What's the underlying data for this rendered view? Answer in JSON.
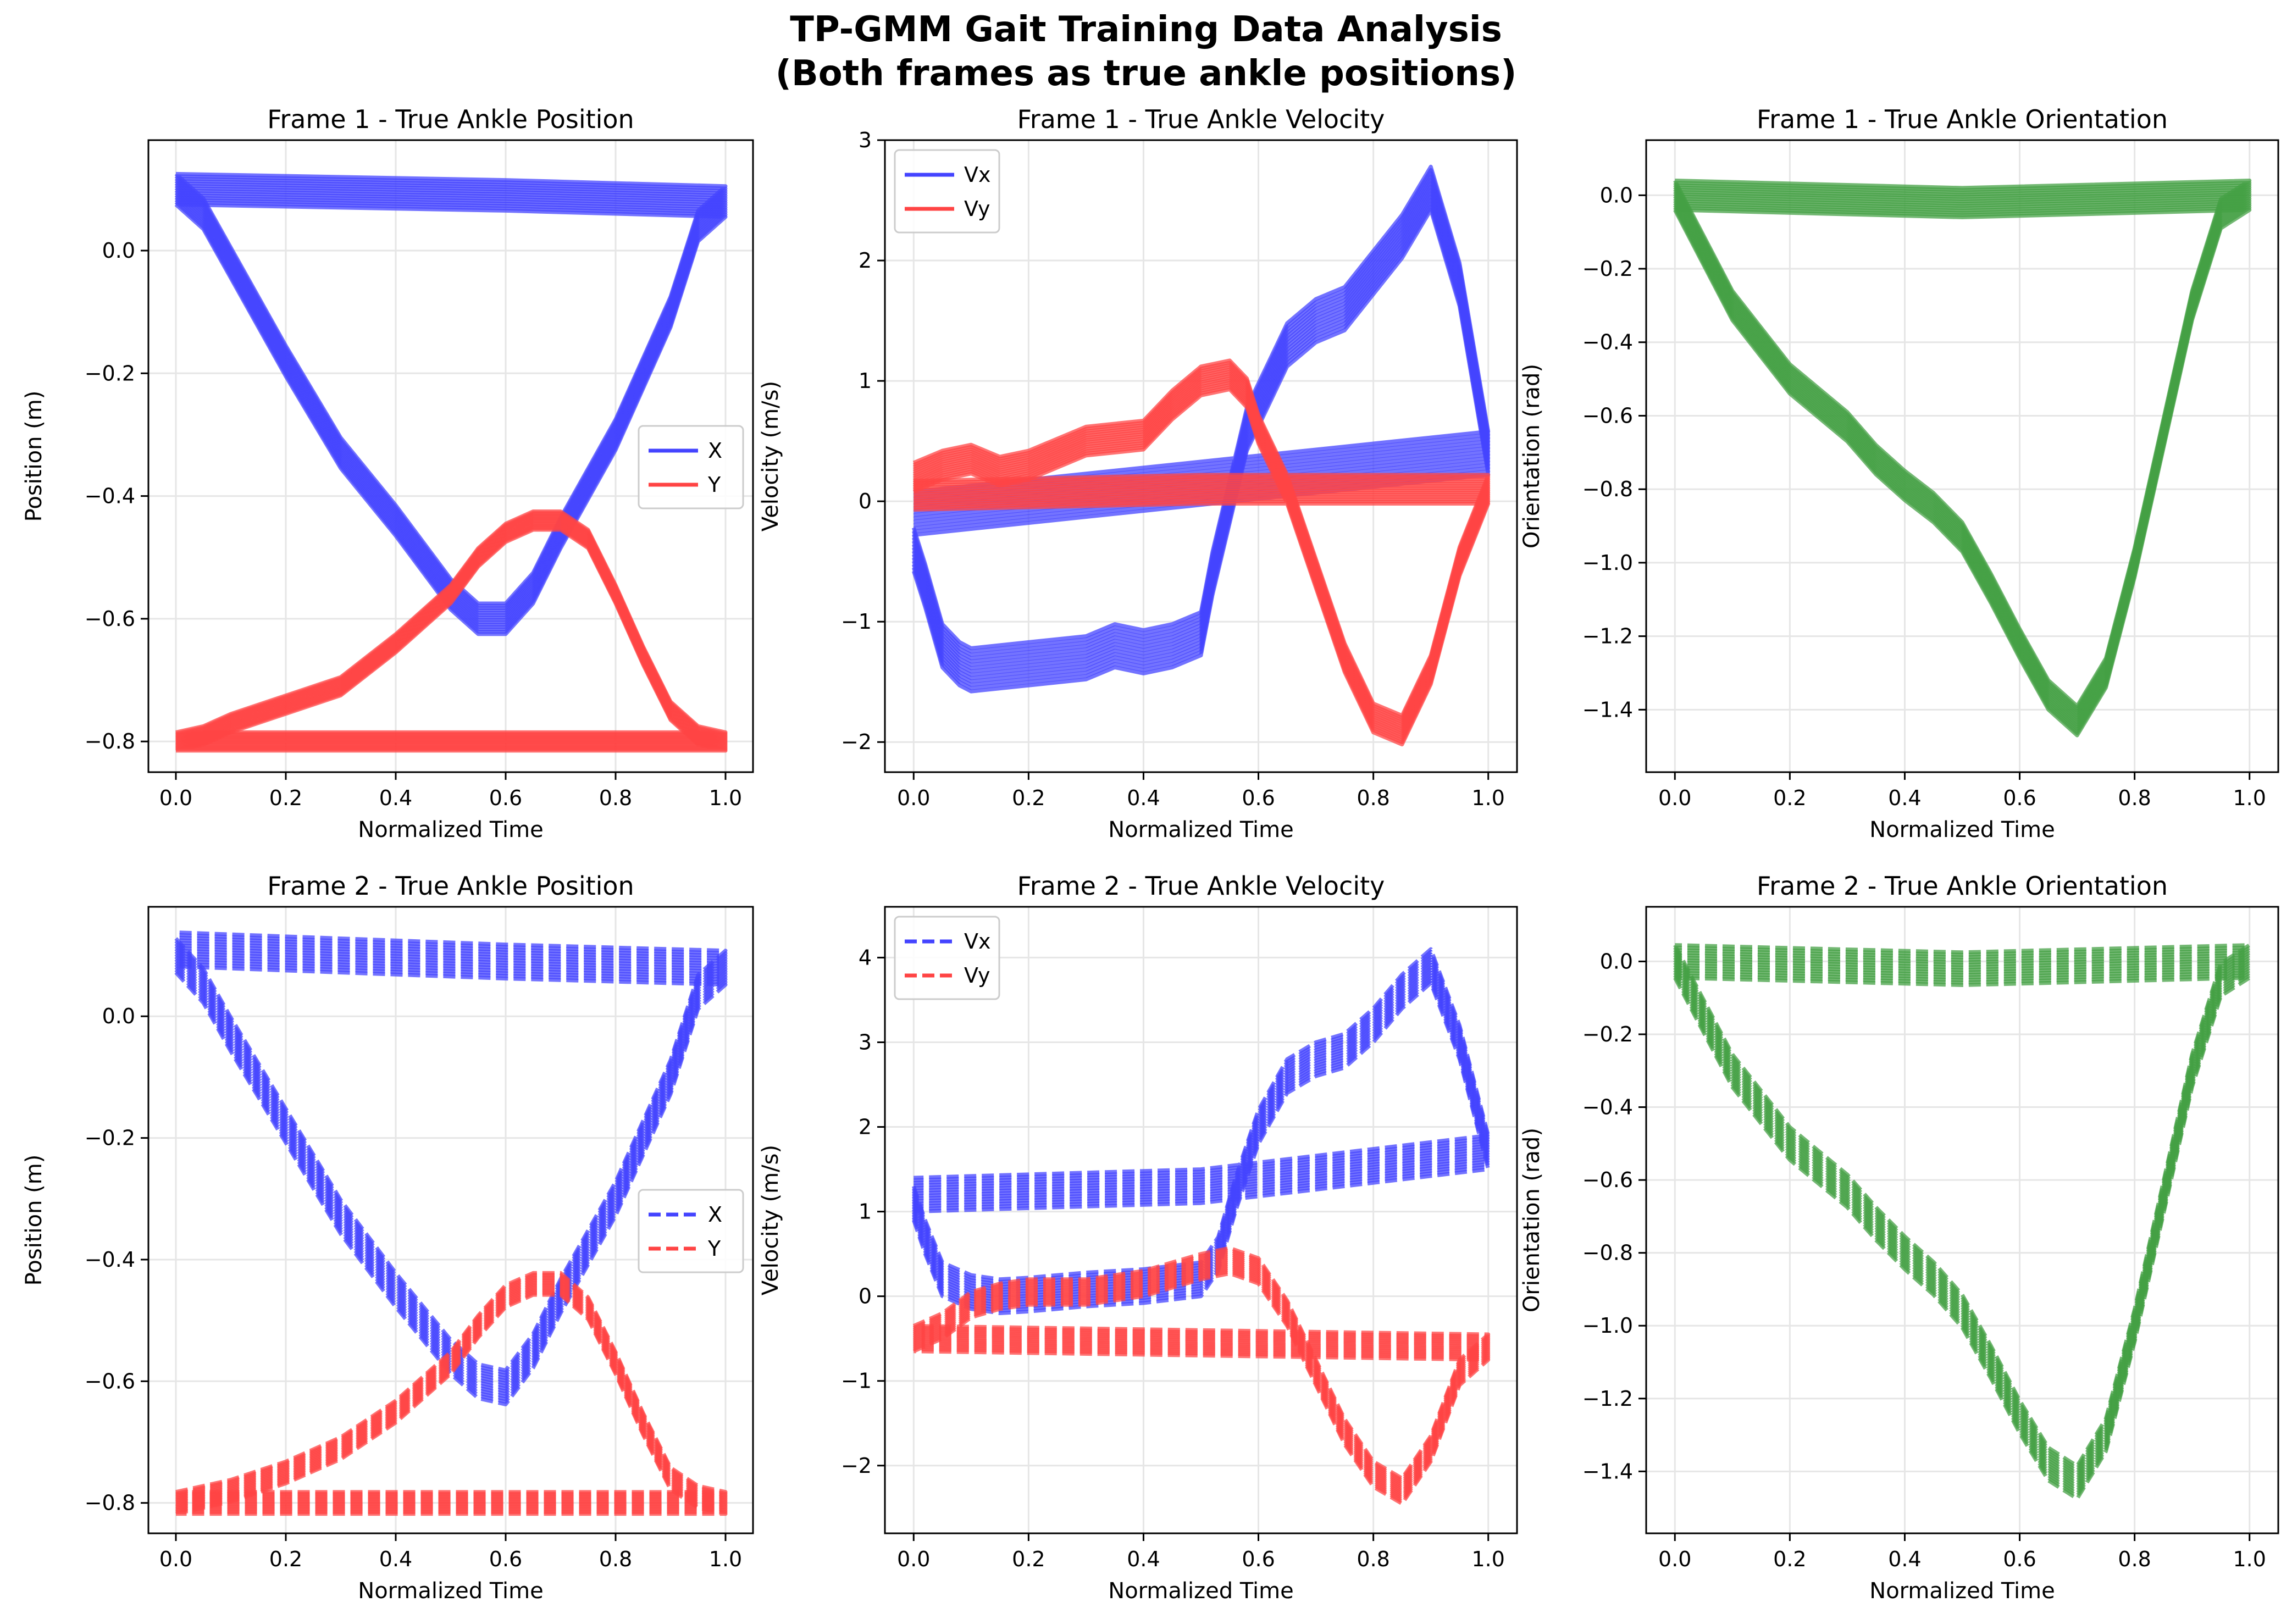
{
  "figure": {
    "title_line1": "TP-GMM Gait Training Data Analysis",
    "title_line2": "(Both frames as true ankle positions)"
  },
  "colors": {
    "x": "#4444ff",
    "y": "#ff4444",
    "orientation": "#44a044",
    "grid": "#e6e6e6",
    "axis": "#000000"
  },
  "chart_data": [
    {
      "type": "line",
      "title": "Frame 1 - True Ankle Position",
      "xlabel": "Normalized Time",
      "ylabel": "Position (m)",
      "xlim": [
        -0.05,
        1.05
      ],
      "ylim": [
        -0.85,
        0.18
      ],
      "xticks": [
        0.0,
        0.2,
        0.4,
        0.6,
        0.8,
        1.0
      ],
      "xtick_labels": [
        "0.0",
        "0.2",
        "0.4",
        "0.6",
        "0.8",
        "1.0"
      ],
      "yticks": [
        0.0,
        -0.2,
        -0.4,
        -0.6,
        -0.8
      ],
      "ytick_labels": [
        "0.0",
        "−0.2",
        "−0.4",
        "−0.6",
        "−0.8"
      ],
      "legend": {
        "position": "center-right",
        "entries": [
          "X",
          "Y"
        ]
      },
      "dashed": false,
      "series": [
        {
          "name": "X",
          "color_key": "x",
          "x": [
            0,
            0.05,
            0.1,
            0.2,
            0.3,
            0.4,
            0.5,
            0.55,
            0.6,
            0.65,
            0.7,
            0.8,
            0.9,
            0.95,
            1.0,
            0.6,
            0.0
          ],
          "values": [
            0.1,
            0.06,
            -0.02,
            -0.18,
            -0.33,
            -0.44,
            -0.56,
            -0.6,
            -0.6,
            -0.55,
            -0.46,
            -0.3,
            -0.1,
            0.04,
            0.08,
            0.09,
            0.1
          ],
          "band": 0.025
        },
        {
          "name": "Y",
          "color_key": "y",
          "x": [
            0,
            0.05,
            0.1,
            0.2,
            0.3,
            0.4,
            0.5,
            0.55,
            0.6,
            0.65,
            0.7,
            0.75,
            0.8,
            0.85,
            0.9,
            0.95,
            1.0,
            0.5,
            0.0
          ],
          "values": [
            -0.8,
            -0.79,
            -0.77,
            -0.74,
            -0.71,
            -0.64,
            -0.56,
            -0.5,
            -0.46,
            -0.44,
            -0.44,
            -0.47,
            -0.56,
            -0.66,
            -0.75,
            -0.79,
            -0.8,
            -0.8,
            -0.8
          ],
          "band": 0.015
        }
      ]
    },
    {
      "type": "line",
      "title": "Frame 1 - True Ankle Velocity",
      "xlabel": "Normalized Time",
      "ylabel": "Velocity (m/s)",
      "xlim": [
        -0.05,
        1.05
      ],
      "ylim": [
        -2.25,
        3.0
      ],
      "xticks": [
        0.0,
        0.2,
        0.4,
        0.6,
        0.8,
        1.0
      ],
      "xtick_labels": [
        "0.0",
        "0.2",
        "0.4",
        "0.6",
        "0.8",
        "1.0"
      ],
      "yticks": [
        3,
        2,
        1,
        0,
        -1,
        -2
      ],
      "ytick_labels": [
        "3",
        "2",
        "1",
        "0",
        "−1",
        "−2"
      ],
      "legend": {
        "position": "upper-left",
        "entries": [
          "Vx",
          "Vy"
        ]
      },
      "dashed": false,
      "series": [
        {
          "name": "Vx",
          "color_key": "x",
          "x": [
            0,
            0.02,
            0.05,
            0.08,
            0.1,
            0.2,
            0.3,
            0.35,
            0.4,
            0.45,
            0.5,
            0.52,
            0.55,
            0.58,
            0.62,
            0.65,
            0.7,
            0.75,
            0.8,
            0.85,
            0.9,
            0.95,
            1.0,
            0.5,
            0.0
          ],
          "values": [
            -0.4,
            -0.7,
            -1.2,
            -1.35,
            -1.4,
            -1.35,
            -1.3,
            -1.2,
            -1.25,
            -1.2,
            -1.1,
            -0.6,
            0.0,
            0.6,
            1.0,
            1.3,
            1.5,
            1.6,
            1.9,
            2.2,
            2.6,
            1.8,
            0.4,
            0.15,
            -0.1
          ],
          "band": 0.18
        },
        {
          "name": "Vy",
          "color_key": "y",
          "x": [
            0,
            0.05,
            0.1,
            0.15,
            0.2,
            0.25,
            0.3,
            0.4,
            0.45,
            0.5,
            0.55,
            0.58,
            0.6,
            0.65,
            0.7,
            0.75,
            0.8,
            0.85,
            0.9,
            0.95,
            1.0,
            0.5,
            0.0
          ],
          "values": [
            0.2,
            0.3,
            0.35,
            0.25,
            0.3,
            0.4,
            0.5,
            0.55,
            0.8,
            1.0,
            1.05,
            0.9,
            0.6,
            0.1,
            -0.6,
            -1.3,
            -1.8,
            -1.9,
            -1.4,
            -0.5,
            0.1,
            0.1,
            0.05
          ],
          "band": 0.12
        }
      ]
    },
    {
      "type": "line",
      "title": "Frame 1 - True Ankle Orientation",
      "xlabel": "Normalized Time",
      "ylabel": "Orientation (rad)",
      "xlim": [
        -0.05,
        1.05
      ],
      "ylim": [
        -1.57,
        0.15
      ],
      "xticks": [
        0.0,
        0.2,
        0.4,
        0.6,
        0.8,
        1.0
      ],
      "xtick_labels": [
        "0.0",
        "0.2",
        "0.4",
        "0.6",
        "0.8",
        "1.0"
      ],
      "yticks": [
        0.0,
        -0.2,
        -0.4,
        -0.6,
        -0.8,
        -1.0,
        -1.2,
        -1.4
      ],
      "ytick_labels": [
        "0.0",
        "−0.2",
        "−0.4",
        "−0.6",
        "−0.8",
        "−1.0",
        "−1.2",
        "−1.4"
      ],
      "legend": null,
      "dashed": false,
      "series": [
        {
          "name": "Orientation",
          "color_key": "orientation",
          "x": [
            0,
            0.05,
            0.1,
            0.15,
            0.2,
            0.3,
            0.35,
            0.4,
            0.45,
            0.5,
            0.55,
            0.6,
            0.65,
            0.7,
            0.75,
            0.8,
            0.85,
            0.9,
            0.95,
            1.0,
            0.5,
            0.0
          ],
          "values": [
            0.0,
            -0.15,
            -0.3,
            -0.4,
            -0.5,
            -0.63,
            -0.72,
            -0.79,
            -0.85,
            -0.93,
            -1.07,
            -1.22,
            -1.36,
            -1.43,
            -1.3,
            -1.0,
            -0.65,
            -0.3,
            -0.05,
            0.0,
            -0.02,
            0.0
          ],
          "band": 0.04
        }
      ]
    },
    {
      "type": "line",
      "title": "Frame 2 - True Ankle Position",
      "xlabel": "Normalized Time",
      "ylabel": "Position (m)",
      "xlim": [
        -0.05,
        1.05
      ],
      "ylim": [
        -0.85,
        0.18
      ],
      "xticks": [
        0.0,
        0.2,
        0.4,
        0.6,
        0.8,
        1.0
      ],
      "xtick_labels": [
        "0.0",
        "0.2",
        "0.4",
        "0.6",
        "0.8",
        "1.0"
      ],
      "yticks": [
        0.0,
        -0.2,
        -0.4,
        -0.6,
        -0.8
      ],
      "ytick_labels": [
        "0.0",
        "−0.2",
        "−0.4",
        "−0.6",
        "−0.8"
      ],
      "legend": {
        "position": "center-right",
        "entries": [
          "X",
          "Y"
        ]
      },
      "dashed": true,
      "series": [
        {
          "name": "X",
          "color_key": "x",
          "x": [
            0,
            0.05,
            0.1,
            0.2,
            0.3,
            0.4,
            0.5,
            0.55,
            0.6,
            0.65,
            0.7,
            0.8,
            0.9,
            0.95,
            1.0,
            0.6,
            0.0
          ],
          "values": [
            0.1,
            0.05,
            -0.03,
            -0.18,
            -0.33,
            -0.45,
            -0.56,
            -0.6,
            -0.61,
            -0.55,
            -0.46,
            -0.3,
            -0.1,
            0.04,
            0.08,
            0.09,
            0.11
          ],
          "band": 0.028
        },
        {
          "name": "Y",
          "color_key": "y",
          "x": [
            0,
            0.05,
            0.1,
            0.2,
            0.3,
            0.4,
            0.5,
            0.55,
            0.6,
            0.65,
            0.7,
            0.75,
            0.8,
            0.85,
            0.9,
            0.95,
            1.0,
            0.5,
            0.0
          ],
          "values": [
            -0.8,
            -0.79,
            -0.78,
            -0.75,
            -0.71,
            -0.65,
            -0.57,
            -0.51,
            -0.46,
            -0.44,
            -0.44,
            -0.48,
            -0.57,
            -0.67,
            -0.76,
            -0.79,
            -0.8,
            -0.8,
            -0.8
          ],
          "band": 0.018
        }
      ]
    },
    {
      "type": "line",
      "title": "Frame 2 - True Ankle Velocity",
      "xlabel": "Normalized Time",
      "ylabel": "Velocity (m/s)",
      "xlim": [
        -0.05,
        1.05
      ],
      "ylim": [
        -2.8,
        4.6
      ],
      "xticks": [
        0.0,
        0.2,
        0.4,
        0.6,
        0.8,
        1.0
      ],
      "xtick_labels": [
        "0.0",
        "0.2",
        "0.4",
        "0.6",
        "0.8",
        "1.0"
      ],
      "yticks": [
        4,
        3,
        2,
        1,
        0,
        -1,
        -2
      ],
      "ytick_labels": [
        "4",
        "3",
        "2",
        "1",
        "0",
        "−1",
        "−2"
      ],
      "legend": {
        "position": "upper-left",
        "entries": [
          "Vx",
          "Vy"
        ]
      },
      "dashed": true,
      "series": [
        {
          "name": "Vx",
          "color_key": "x",
          "x": [
            0,
            0.02,
            0.05,
            0.1,
            0.15,
            0.2,
            0.3,
            0.4,
            0.5,
            0.53,
            0.56,
            0.6,
            0.65,
            0.7,
            0.75,
            0.8,
            0.85,
            0.9,
            0.95,
            1.0,
            0.5,
            0.0
          ],
          "values": [
            1.1,
            0.7,
            0.2,
            0.05,
            0.0,
            0.02,
            0.08,
            0.12,
            0.2,
            0.5,
            1.2,
            2.0,
            2.6,
            2.8,
            2.9,
            3.2,
            3.6,
            3.9,
            3.0,
            1.7,
            1.3,
            1.2
          ],
          "band": 0.2
        },
        {
          "name": "Vy",
          "color_key": "y",
          "x": [
            0,
            0.05,
            0.1,
            0.15,
            0.2,
            0.3,
            0.4,
            0.45,
            0.5,
            0.55,
            0.6,
            0.65,
            0.7,
            0.75,
            0.8,
            0.85,
            0.9,
            0.95,
            1.0,
            0.5,
            0.0
          ],
          "values": [
            -0.5,
            -0.35,
            -0.1,
            0.0,
            0.05,
            0.05,
            0.15,
            0.25,
            0.35,
            0.42,
            0.3,
            -0.2,
            -0.9,
            -1.6,
            -2.1,
            -2.3,
            -1.8,
            -0.9,
            -0.6,
            -0.55,
            -0.5
          ],
          "band": 0.15
        }
      ]
    },
    {
      "type": "line",
      "title": "Frame 2 - True Ankle Orientation",
      "xlabel": "Normalized Time",
      "ylabel": "Orientation (rad)",
      "xlim": [
        -0.05,
        1.05
      ],
      "ylim": [
        -1.57,
        0.15
      ],
      "xticks": [
        0.0,
        0.2,
        0.4,
        0.6,
        0.8,
        1.0
      ],
      "xtick_labels": [
        "0.0",
        "0.2",
        "0.4",
        "0.6",
        "0.8",
        "1.0"
      ],
      "yticks": [
        0.0,
        -0.2,
        -0.4,
        -0.6,
        -0.8,
        -1.0,
        -1.2,
        -1.4
      ],
      "ytick_labels": [
        "0.0",
        "−0.2",
        "−0.4",
        "−0.6",
        "−0.8",
        "−1.0",
        "−1.2",
        "−1.4"
      ],
      "legend": null,
      "dashed": true,
      "series": [
        {
          "name": "Orientation",
          "color_key": "orientation",
          "x": [
            0,
            0.05,
            0.1,
            0.15,
            0.2,
            0.3,
            0.35,
            0.4,
            0.45,
            0.5,
            0.55,
            0.6,
            0.65,
            0.7,
            0.75,
            0.8,
            0.85,
            0.9,
            0.95,
            1.0,
            0.5,
            0.0
          ],
          "values": [
            0.0,
            -0.15,
            -0.3,
            -0.4,
            -0.5,
            -0.63,
            -0.72,
            -0.8,
            -0.87,
            -0.96,
            -1.1,
            -1.25,
            -1.38,
            -1.43,
            -1.3,
            -1.0,
            -0.65,
            -0.3,
            -0.05,
            0.0,
            -0.02,
            0.0
          ],
          "band": 0.045
        }
      ]
    }
  ]
}
